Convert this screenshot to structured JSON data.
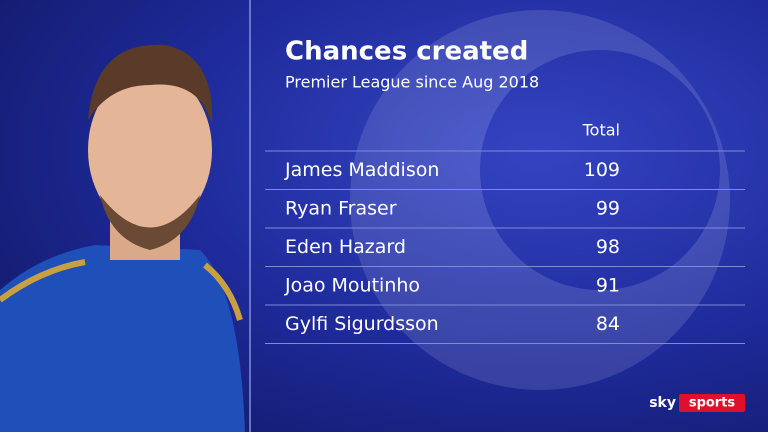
{
  "header": {
    "title": "Chances created",
    "subtitle": "Premier League since Aug 2018"
  },
  "table": {
    "columns": [
      "Total"
    ],
    "rows": [
      [
        "James Maddison",
        109
      ],
      [
        "Ryan Fraser",
        99
      ],
      [
        "Eden Hazard",
        98
      ],
      [
        "Joao Moutinho",
        91
      ],
      [
        "Gylfi Sigurdsson",
        84
      ]
    ]
  },
  "brand": {
    "sky": "sky",
    "sports": "sports"
  }
}
